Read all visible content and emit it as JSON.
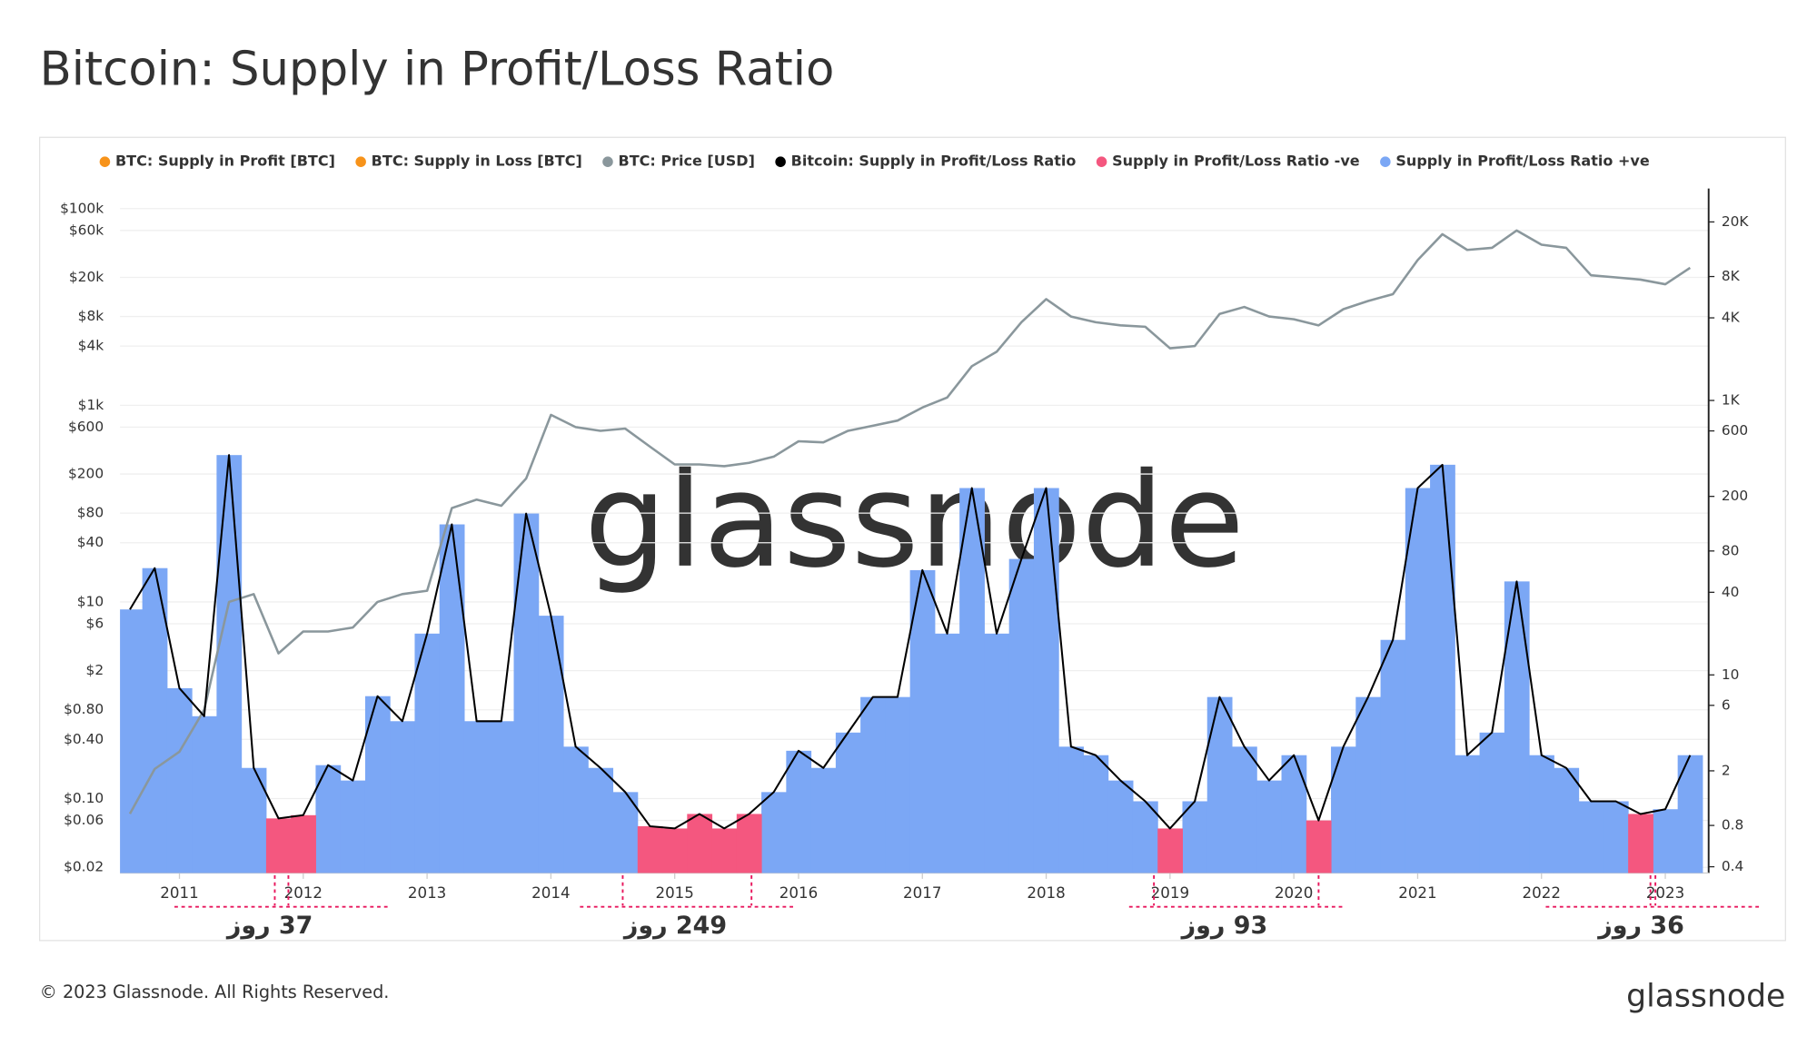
{
  "chart_data": {
    "type": "line",
    "title": "Bitcoin: Supply in Profit/Loss Ratio",
    "footer": "© 2023 Glassnode. All Rights Reserved.",
    "logo": "glassnode",
    "watermark": "glassnode",
    "x": [
      2010.6,
      2010.8,
      2011,
      2011.2,
      2011.4,
      2011.6,
      2011.8,
      2012,
      2012.2,
      2012.4,
      2012.6,
      2012.8,
      2013,
      2013.2,
      2013.4,
      2013.6,
      2013.8,
      2014,
      2014.2,
      2014.4,
      2014.6,
      2014.8,
      2015,
      2015.2,
      2015.4,
      2015.6,
      2015.8,
      2016,
      2016.2,
      2016.4,
      2016.6,
      2016.8,
      2017,
      2017.2,
      2017.4,
      2017.6,
      2017.8,
      2018,
      2018.2,
      2018.4,
      2018.6,
      2018.8,
      2019,
      2019.2,
      2019.4,
      2019.6,
      2019.8,
      2020,
      2020.2,
      2020.4,
      2020.6,
      2020.8,
      2021,
      2021.2,
      2021.4,
      2021.6,
      2021.8,
      2022,
      2022.2,
      2022.4,
      2022.6,
      2022.8,
      2023,
      2023.2
    ],
    "xlim": [
      2010.52,
      2023.35
    ],
    "xticks": [
      2011,
      2012,
      2013,
      2014,
      2015,
      2016,
      2017,
      2018,
      2019,
      2020,
      2021,
      2022,
      2023
    ],
    "ylim": [
      0.0175,
      160000
    ],
    "log_scale": true,
    "yticks": [
      {
        "value": 0.02,
        "label": "$0.02"
      },
      {
        "value": 0.06,
        "label": "$0.06"
      },
      {
        "value": 0.1,
        "label": "$0.10"
      },
      {
        "value": 0.4,
        "label": "$0.40"
      },
      {
        "value": 0.8,
        "label": "$0.80"
      },
      {
        "value": 2,
        "label": "$2"
      },
      {
        "value": 6,
        "label": "$6"
      },
      {
        "value": 10,
        "label": "$10"
      },
      {
        "value": 40,
        "label": "$40"
      },
      {
        "value": 80,
        "label": "$80"
      },
      {
        "value": 200,
        "label": "$200"
      },
      {
        "value": 600,
        "label": "$600"
      },
      {
        "value": 1000,
        "label": "$1k"
      },
      {
        "value": 4000,
        "label": "$4k"
      },
      {
        "value": 8000,
        "label": "$8k"
      },
      {
        "value": 20000,
        "label": "$20k"
      },
      {
        "value": 60000,
        "label": "$60k"
      },
      {
        "value": 100000,
        "label": "$100k"
      }
    ],
    "y2lim": [
      0.36,
      35000
    ],
    "y2_log_scale": true,
    "y2ticks": [
      0.4,
      0.8,
      2,
      6,
      10,
      40,
      80,
      200,
      600,
      {
        "value": 1000,
        "label": "1K"
      },
      {
        "value": 4000,
        "label": "4K"
      },
      {
        "value": 8000,
        "label": "8K"
      },
      {
        "value": 20000,
        "label": "20K"
      }
    ],
    "grid": true,
    "legend": "top-left",
    "series": [
      {
        "name": "BTC: Supply in Profit [BTC]",
        "color": "#f7931a",
        "visible": false
      },
      {
        "name": "BTC: Supply in Loss [BTC]",
        "color": "#f7931a",
        "visible": false
      },
      {
        "name": "BTC: Price [USD]",
        "color": "#8a979c",
        "axis": "y",
        "style": "line",
        "values": [
          0.07,
          0.2,
          0.3,
          0.8,
          10,
          12,
          3,
          5,
          5,
          5.5,
          10,
          12,
          13,
          90,
          110,
          95,
          180,
          800,
          600,
          550,
          580,
          380,
          250,
          250,
          240,
          260,
          300,
          430,
          420,
          550,
          620,
          700,
          950,
          1200,
          2500,
          3500,
          7000,
          12000,
          8000,
          7000,
          6500,
          6300,
          3800,
          4000,
          8500,
          10000,
          8000,
          7500,
          6500,
          9500,
          11500,
          13500,
          30000,
          55000,
          38000,
          40000,
          60000,
          43000,
          40000,
          21000,
          20000,
          19000,
          17000,
          25000
        ]
      },
      {
        "name": "Bitcoin: Supply in Profit/Loss Ratio",
        "color": "#000000",
        "axis": "y2",
        "style": "line",
        "values": [
          30,
          60,
          8,
          5,
          400,
          2.1,
          0.9,
          0.95,
          2.2,
          1.7,
          7,
          4.6,
          20,
          125,
          4.6,
          4.6,
          150,
          27,
          3,
          2.1,
          1.4,
          0.79,
          0.76,
          0.97,
          0.76,
          0.97,
          1.4,
          2.8,
          2.1,
          3.8,
          6.9,
          6.9,
          58,
          20,
          230,
          20,
          70,
          230,
          3,
          2.6,
          1.7,
          1.2,
          0.76,
          1.2,
          6.9,
          3,
          1.7,
          2.6,
          0.87,
          3,
          6.9,
          18,
          230,
          340,
          2.6,
          3.8,
          48,
          2.6,
          2.1,
          1.2,
          1.2,
          0.97,
          1.05,
          2.6
        ]
      },
      {
        "name": "Supply in Profit/Loss Ratio -ve",
        "color": "#f4577f",
        "axis": "y2",
        "style": "bars",
        "values": [
          null,
          null,
          null,
          null,
          null,
          null,
          0.9,
          0.95,
          null,
          null,
          null,
          null,
          null,
          null,
          null,
          null,
          null,
          null,
          null,
          null,
          null,
          0.79,
          0.76,
          0.97,
          0.76,
          0.97,
          null,
          null,
          null,
          null,
          null,
          null,
          null,
          null,
          null,
          null,
          null,
          null,
          null,
          null,
          null,
          null,
          0.76,
          null,
          null,
          null,
          null,
          null,
          0.87,
          null,
          null,
          null,
          null,
          null,
          null,
          null,
          null,
          null,
          null,
          null,
          null,
          0.97,
          null,
          null
        ]
      },
      {
        "name": "Supply in Profit/Loss Ratio +ve",
        "color": "#7ba7f5",
        "axis": "y2",
        "style": "bars",
        "values": [
          30,
          60,
          8,
          5,
          400,
          2.1,
          null,
          null,
          2.2,
          1.7,
          7,
          4.6,
          20,
          125,
          4.6,
          4.6,
          150,
          27,
          3,
          2.1,
          1.4,
          null,
          null,
          null,
          null,
          null,
          1.4,
          2.8,
          2.1,
          3.8,
          6.9,
          6.9,
          58,
          20,
          230,
          20,
          70,
          230,
          3,
          2.6,
          1.7,
          1.2,
          null,
          1.2,
          6.9,
          3,
          1.7,
          2.6,
          null,
          3,
          6.9,
          18,
          230,
          340,
          2.6,
          3.8,
          48,
          2.6,
          2.1,
          1.2,
          1.2,
          null,
          1.05,
          2.6
        ]
      }
    ],
    "annotations": [
      {
        "text": "37 روز",
        "x": [
          2011.77,
          2011.88
        ]
      },
      {
        "text": "249 روز",
        "x": [
          2014.58,
          2015.62
        ]
      },
      {
        "text": "93 روز",
        "x": [
          2018.87,
          2020.2
        ]
      },
      {
        "text": "36 روز",
        "x": [
          2022.88,
          2022.92
        ]
      }
    ]
  }
}
